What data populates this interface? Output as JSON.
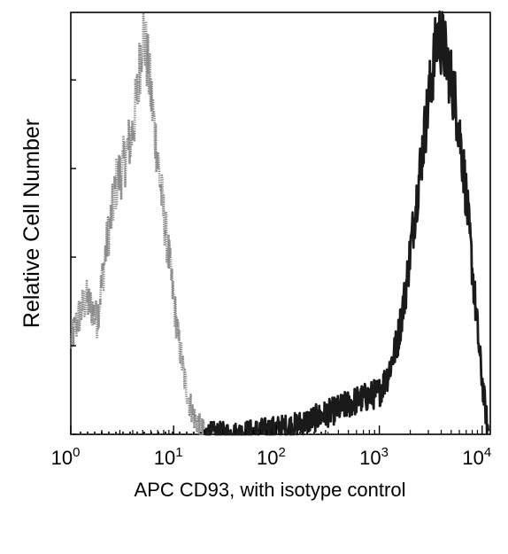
{
  "chart_data": {
    "type": "area",
    "title": "",
    "xlabel": "APC CD93, with isotype control",
    "ylabel": "Relative Cell Number",
    "x_scale": "log",
    "xlim": [
      1,
      12000
    ],
    "ylim": [
      0,
      100
    ],
    "x_ticks": [
      {
        "value": 1,
        "base": "10",
        "exp": "0"
      },
      {
        "value": 10,
        "base": "10",
        "exp": "1"
      },
      {
        "value": 100,
        "base": "10",
        "exp": "2"
      },
      {
        "value": 1000,
        "base": "10",
        "exp": "3"
      },
      {
        "value": 10000,
        "base": "10",
        "exp": "4"
      }
    ],
    "y_ticks": [
      0,
      21,
      42,
      63,
      84
    ],
    "grid": false,
    "legend": "none",
    "series": [
      {
        "role": "isotype control",
        "color": "#8a8a8a",
        "x": [
          1.0,
          1.2,
          1.4,
          1.6,
          1.8,
          2.0,
          2.2,
          2.5,
          2.8,
          3.2,
          3.6,
          4.0,
          4.5,
          5.0,
          5.6,
          6.3,
          7.1,
          8.0,
          9.0,
          10.0,
          11.2,
          12.6,
          14.1,
          15.8,
          17.8,
          20.0
        ],
        "y": [
          22,
          28,
          32,
          30,
          27,
          36,
          44,
          52,
          60,
          63,
          68,
          72,
          82,
          96,
          88,
          76,
          64,
          52,
          42,
          32,
          22,
          14,
          8,
          4,
          2,
          0
        ]
      },
      {
        "role": "APC CD93",
        "color": "#1a1a1a",
        "x": [
          20,
          40,
          80,
          150,
          250,
          400,
          600,
          800,
          1000,
          1200,
          1500,
          1800,
          2200,
          2700,
          3200,
          3700,
          4200,
          4800,
          5400,
          6000,
          6800,
          7600,
          8500,
          9500,
          10500,
          11500
        ],
        "y": [
          0,
          0,
          1,
          2,
          4,
          6,
          8,
          9,
          10,
          14,
          22,
          34,
          52,
          70,
          84,
          95,
          92,
          86,
          80,
          72,
          60,
          46,
          32,
          18,
          8,
          0
        ]
      }
    ]
  }
}
